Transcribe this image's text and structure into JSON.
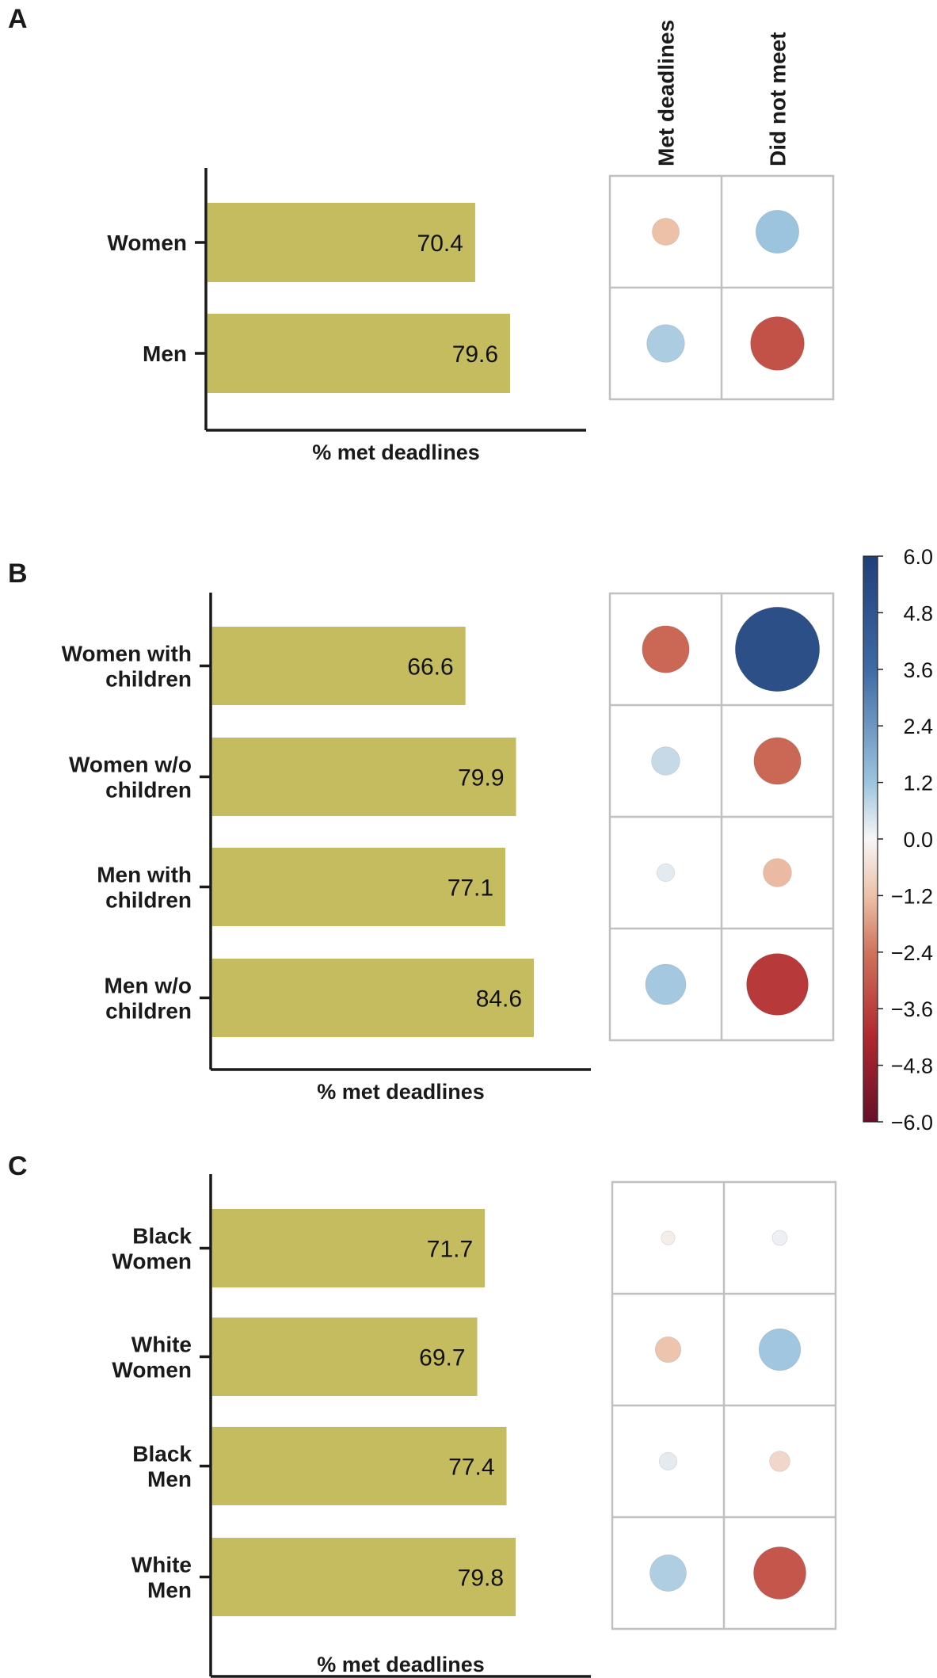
{
  "chart_data": [
    {
      "panel": "A",
      "type": "bar",
      "orientation": "horizontal",
      "categories": [
        [
          "Women"
        ],
        [
          "Men"
        ]
      ],
      "values": [
        70.4,
        79.6
      ],
      "xlabel": "% met deadlines",
      "residuals_type": "heatmap",
      "residual_columns": [
        "Met deadlines",
        "Did not meet"
      ],
      "residuals": [
        [
          -1.2,
          2.4
        ],
        [
          2.0,
          -3.2
        ]
      ]
    },
    {
      "panel": "B",
      "type": "bar",
      "orientation": "horizontal",
      "categories": [
        [
          "Women with",
          "children"
        ],
        [
          "Women w/o",
          "children"
        ],
        [
          "Men with",
          "children"
        ],
        [
          "Men w/o",
          "children"
        ]
      ],
      "values": [
        66.6,
        79.9,
        77.1,
        84.6
      ],
      "xlabel": "% met deadlines",
      "residuals_type": "heatmap",
      "residual_columns": [
        "Met deadlines",
        "Did not meet"
      ],
      "residuals": [
        [
          -2.7,
          5.5
        ],
        [
          1.3,
          -2.7
        ],
        [
          0.5,
          -1.3
        ],
        [
          2.2,
          -3.8
        ]
      ]
    },
    {
      "panel": "C",
      "type": "bar",
      "orientation": "horizontal",
      "categories": [
        [
          "Black",
          "Women"
        ],
        [
          "White",
          "Women"
        ],
        [
          "Black",
          "Men"
        ],
        [
          "White",
          "Men"
        ]
      ],
      "values": [
        71.7,
        69.7,
        77.4,
        79.8
      ],
      "xlabel": "% met deadlines",
      "residuals_type": "heatmap",
      "residual_columns": [
        "Met deadlines",
        "Did not meet"
      ],
      "residuals": [
        [
          -0.2,
          0.3
        ],
        [
          -1.1,
          2.3
        ],
        [
          0.5,
          -0.7
        ],
        [
          1.9,
          -3.1
        ]
      ]
    }
  ],
  "colorbar": {
    "ticks": [
      "6.0",
      "4.8",
      "3.6",
      "2.4",
      "1.2",
      "0.0",
      "−1.2",
      "−2.4",
      "−3.6",
      "−4.8",
      "−6.0"
    ],
    "range": [
      -6.0,
      6.0
    ]
  },
  "colors": {
    "bar": "#c4bc5e",
    "axis": "#1a1a1a",
    "grid_border": "#c0c0c0"
  }
}
